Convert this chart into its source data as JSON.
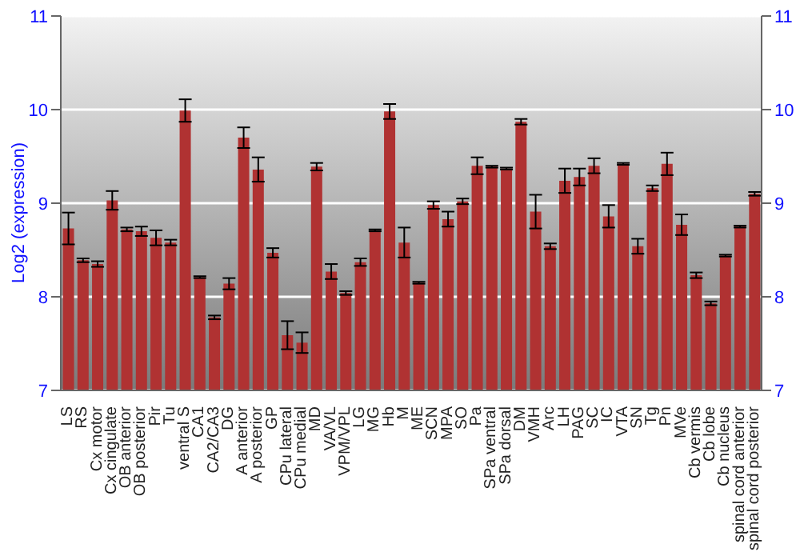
{
  "chart_data": {
    "type": "bar",
    "ylabel": "Log2 (expression)",
    "categories": [
      "LS",
      "RS",
      "Cx motor",
      "Cx cingulate",
      "OB anterior",
      "OB posterior",
      "Pir",
      "Tu",
      "ventral S",
      "CA1",
      "CA2/CA3",
      "DG",
      "A anterior",
      "A posterior",
      "GP",
      "CPu lateral",
      "CPu medial",
      "MD",
      "VA/VL",
      "VPM/VPL",
      "LG",
      "MG",
      "Hb",
      "M",
      "ME",
      "SCN",
      "MPA",
      "SO",
      "Pa",
      "SPa ventral",
      "SPa dorsal",
      "DM",
      "VMH",
      "Arc",
      "LH",
      "PAG",
      "SC",
      "IC",
      "VTA",
      "SN",
      "Tg",
      "Pn",
      "MVe",
      "Cb vermis",
      "Cb lobe",
      "Cb nucleus",
      "spinal cord anterior",
      "spinal cord posterior"
    ],
    "values": [
      8.73,
      8.39,
      8.35,
      9.03,
      8.72,
      8.7,
      8.63,
      8.58,
      9.99,
      8.21,
      7.78,
      8.14,
      9.7,
      9.36,
      8.47,
      7.59,
      7.51,
      9.39,
      8.27,
      8.04,
      8.37,
      8.71,
      9.98,
      8.58,
      8.15,
      8.98,
      8.83,
      9.02,
      9.4,
      9.39,
      9.37,
      9.87,
      8.91,
      8.54,
      9.24,
      9.28,
      9.4,
      8.86,
      9.42,
      8.54,
      9.16,
      9.42,
      8.77,
      8.23,
      7.93,
      8.44,
      8.75,
      9.1
    ],
    "errors": [
      0.17,
      0.02,
      0.03,
      0.1,
      0.02,
      0.05,
      0.08,
      0.03,
      0.12,
      0.01,
      0.02,
      0.06,
      0.11,
      0.13,
      0.05,
      0.15,
      0.11,
      0.04,
      0.08,
      0.02,
      0.04,
      0.01,
      0.08,
      0.16,
      0.01,
      0.04,
      0.08,
      0.03,
      0.09,
      0.01,
      0.01,
      0.03,
      0.18,
      0.03,
      0.13,
      0.09,
      0.08,
      0.12,
      0.01,
      0.08,
      0.03,
      0.12,
      0.11,
      0.03,
      0.02,
      0.01,
      0.01,
      0.02
    ],
    "color": "#b03232",
    "ylim": [
      7,
      11
    ],
    "yticks": [
      7,
      8,
      9,
      10,
      11
    ],
    "y2lim": [
      7,
      11
    ],
    "y2ticks": [
      7,
      8,
      9,
      10,
      11
    ],
    "grid": "y"
  }
}
